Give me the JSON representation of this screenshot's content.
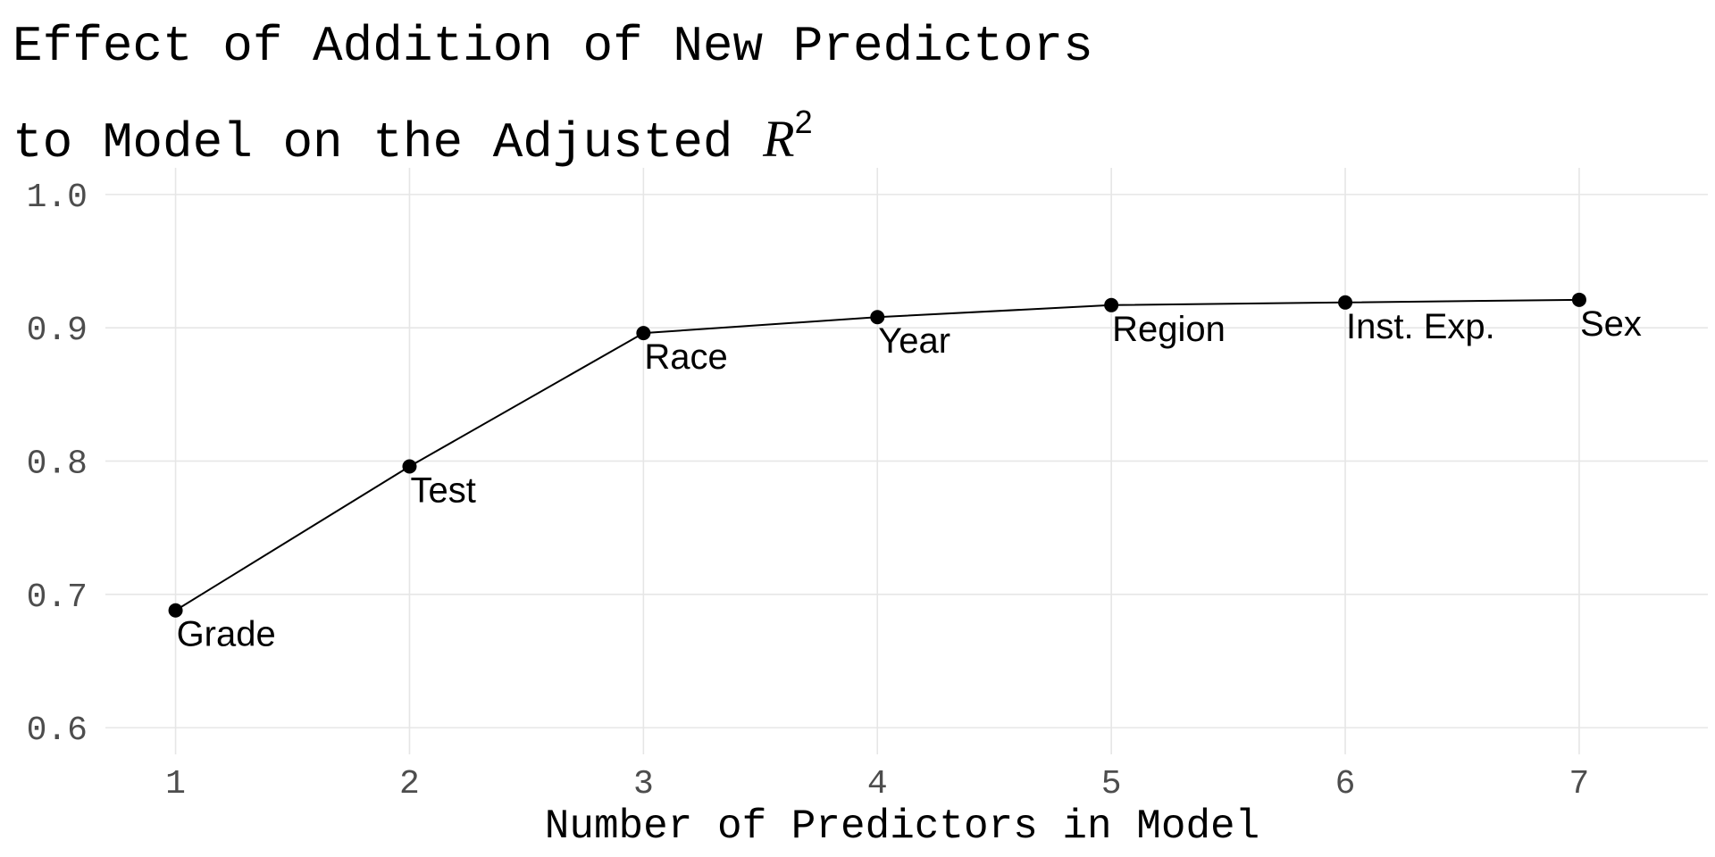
{
  "chart_data": {
    "type": "line",
    "title_line1": "Effect of Addition of New Predictors",
    "title_line2": "to Model on the Adjusted ",
    "title_symbol": "R",
    "title_superscript": "2",
    "xlabel": "Number of Predictors in Model",
    "ylabel": "",
    "xlim": [
      0.7,
      7.55
    ],
    "ylim": [
      0.58,
      1.02
    ],
    "x_ticks": [
      1,
      2,
      3,
      4,
      5,
      6,
      7
    ],
    "x_tick_labels": [
      "1",
      "2",
      "3",
      "4",
      "5",
      "6",
      "7"
    ],
    "y_ticks": [
      0.6,
      0.7,
      0.8,
      0.9,
      1.0
    ],
    "y_tick_labels": [
      "0.6",
      "0.7",
      "0.8",
      "0.9",
      "1.0"
    ],
    "grid": true,
    "legend": "none",
    "line_color": "#000000",
    "x": [
      1,
      2,
      3,
      4,
      5,
      6,
      7
    ],
    "y": [
      0.688,
      0.796,
      0.896,
      0.908,
      0.917,
      0.919,
      0.921
    ],
    "point_labels": [
      "Grade",
      "Test",
      "Race",
      "Year",
      "Region",
      "Inst. Exp.",
      "Sex"
    ]
  }
}
